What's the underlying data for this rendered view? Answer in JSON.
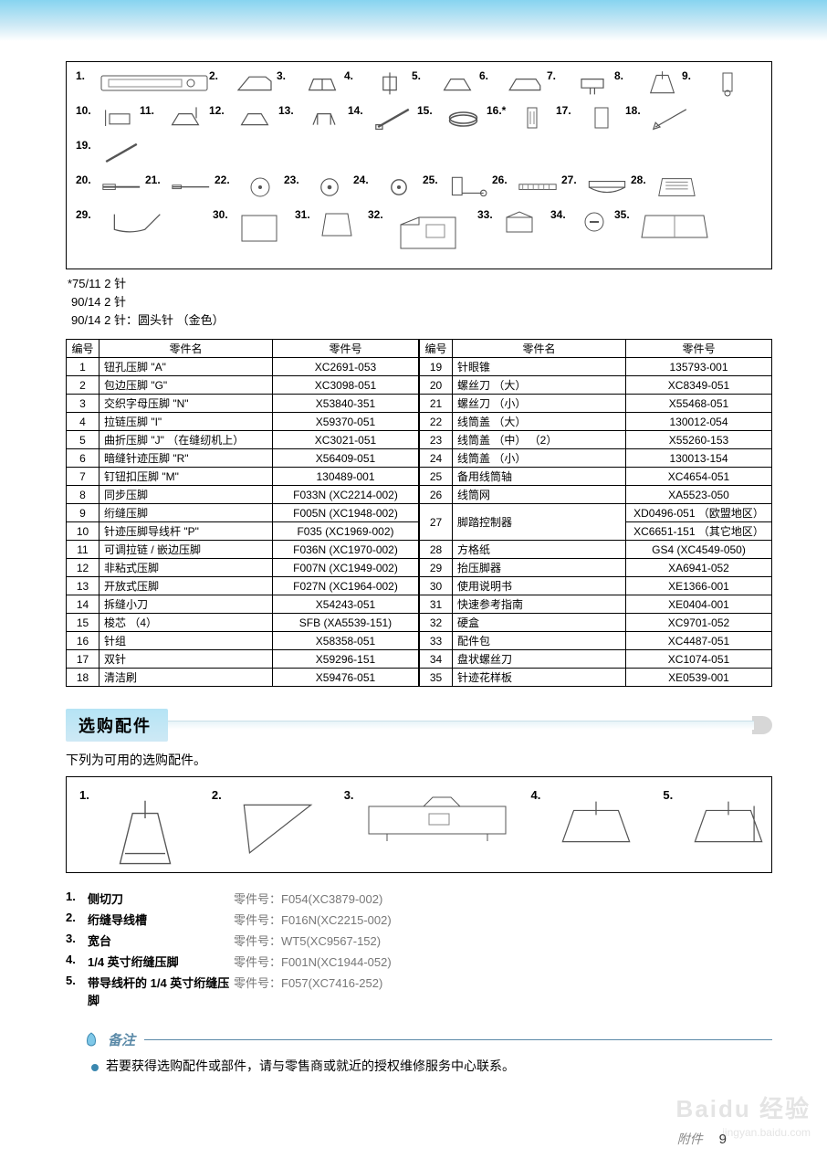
{
  "notes": {
    "l1": "*75/11 2 针",
    "l2": "90/14 2 针",
    "l3": "90/14 2 针：圆头针 （金色）"
  },
  "table": {
    "headers": [
      "编号",
      "零件名",
      "零件号",
      "编号",
      "零件名",
      "零件号"
    ],
    "left": [
      {
        "n": "1",
        "name": "钮孔压脚 \"A\"",
        "part": "XC2691-053"
      },
      {
        "n": "2",
        "name": "包边压脚 \"G\"",
        "part": "XC3098-051"
      },
      {
        "n": "3",
        "name": "交织字母压脚 \"N\"",
        "part": "X53840-351"
      },
      {
        "n": "4",
        "name": "拉链压脚 \"I\"",
        "part": "X59370-051"
      },
      {
        "n": "5",
        "name": "曲折压脚 \"J\" （在缝纫机上）",
        "part": "XC3021-051"
      },
      {
        "n": "6",
        "name": "暗缝针迹压脚 \"R\"",
        "part": "X56409-051"
      },
      {
        "n": "7",
        "name": "钉钮扣压脚 \"M\"",
        "part": "130489-001"
      },
      {
        "n": "8",
        "name": "同步压脚",
        "part": "F033N (XC2214-002)"
      },
      {
        "n": "9",
        "name": "绗缝压脚",
        "part": "F005N (XC1948-002)"
      },
      {
        "n": "10",
        "name": "针迹压脚导线杆 \"P\"",
        "part": "F035 (XC1969-002)"
      },
      {
        "n": "11",
        "name": "可调拉链 / 嵌边压脚",
        "part": "F036N (XC1970-002)"
      },
      {
        "n": "12",
        "name": "非粘式压脚",
        "part": "F007N (XC1949-002)"
      },
      {
        "n": "13",
        "name": "开放式压脚",
        "part": "F027N (XC1964-002)"
      },
      {
        "n": "14",
        "name": "拆缝小刀",
        "part": "X54243-051"
      },
      {
        "n": "15",
        "name": "梭芯 （4）",
        "part": "SFB (XA5539-151)"
      },
      {
        "n": "16",
        "name": "针组",
        "part": "X58358-051"
      },
      {
        "n": "17",
        "name": "双针",
        "part": "X59296-151"
      },
      {
        "n": "18",
        "name": "清洁刷",
        "part": "X59476-051"
      }
    ],
    "right": [
      {
        "n": "19",
        "name": "针眼锥",
        "part": "135793-001"
      },
      {
        "n": "20",
        "name": "螺丝刀 （大）",
        "part": "XC8349-051"
      },
      {
        "n": "21",
        "name": "螺丝刀 （小）",
        "part": "X55468-051"
      },
      {
        "n": "22",
        "name": "线筒盖 （大）",
        "part": "130012-054"
      },
      {
        "n": "23",
        "name": "线筒盖 （中） （2）",
        "part": "X55260-153"
      },
      {
        "n": "24",
        "name": "线筒盖 （小）",
        "part": "130013-154"
      },
      {
        "n": "25",
        "name": "备用线筒轴",
        "part": "XC4654-051"
      },
      {
        "n": "26",
        "name": "线筒网",
        "part": "XA5523-050"
      },
      {
        "n": "27",
        "name": "脚踏控制器",
        "part": "XD0496-051 （欧盟地区）",
        "part2": "XC6651-151 （其它地区）",
        "span": 2
      },
      {
        "n": "28",
        "name": "方格纸",
        "part": "GS4 (XC4549-050)"
      },
      {
        "n": "29",
        "name": "抬压脚器",
        "part": "XA6941-052"
      },
      {
        "n": "30",
        "name": "使用说明书",
        "part": "XE1366-001"
      },
      {
        "n": "31",
        "name": "快速参考指南",
        "part": "XE0404-001"
      },
      {
        "n": "32",
        "name": "硬盒",
        "part": "XC9701-052"
      },
      {
        "n": "33",
        "name": "配件包",
        "part": "XC4487-051"
      },
      {
        "n": "34",
        "name": "盘状螺丝刀",
        "part": "XC1074-051"
      },
      {
        "n": "35",
        "name": "针迹花样板",
        "part": "XE0539-001"
      }
    ]
  },
  "section": {
    "title": "选购配件",
    "subtitle": "下列为可用的选购配件。"
  },
  "optional": [
    {
      "n": "1.",
      "name": "侧切刀",
      "part": "零件号：F054(XC3879-002)"
    },
    {
      "n": "2.",
      "name": "绗缝导线槽",
      "part": "零件号：F016N(XC2215-002)"
    },
    {
      "n": "3.",
      "name": "宽台",
      "part": "零件号：WT5(XC9567-152)"
    },
    {
      "n": "4.",
      "name": "1/4 英寸绗缝压脚",
      "part": "零件号：F001N(XC1944-052)"
    },
    {
      "n": "5.",
      "name": "带导线杆的 1/4 英寸绗缝压脚",
      "part": "零件号：F057(XC7416-252)"
    }
  ],
  "memo": {
    "title": "备注",
    "body": "若要获得选购配件或部件，请与零售商或就近的授权维修服务中心联系。"
  },
  "footer": {
    "label": "附件",
    "page": "9"
  },
  "wm": {
    "a": "Baidu 经验",
    "b": "jingyan.baidu.com"
  },
  "parts_nums": [
    "1.",
    "2.",
    "3.",
    "4.",
    "5.",
    "6.",
    "7.",
    "8.",
    "9.",
    "10.",
    "11.",
    "12.",
    "13.",
    "14.",
    "15.",
    "16.*",
    "17.",
    "18.",
    "19.",
    "20.",
    "21.",
    "22.",
    "23.",
    "24.",
    "25.",
    "26.",
    "27.",
    "28.",
    "29.",
    "30.",
    "31.",
    "32.",
    "33.",
    "34.",
    "35."
  ],
  "opt_nums": [
    "1.",
    "2.",
    "3.",
    "4.",
    "5."
  ]
}
